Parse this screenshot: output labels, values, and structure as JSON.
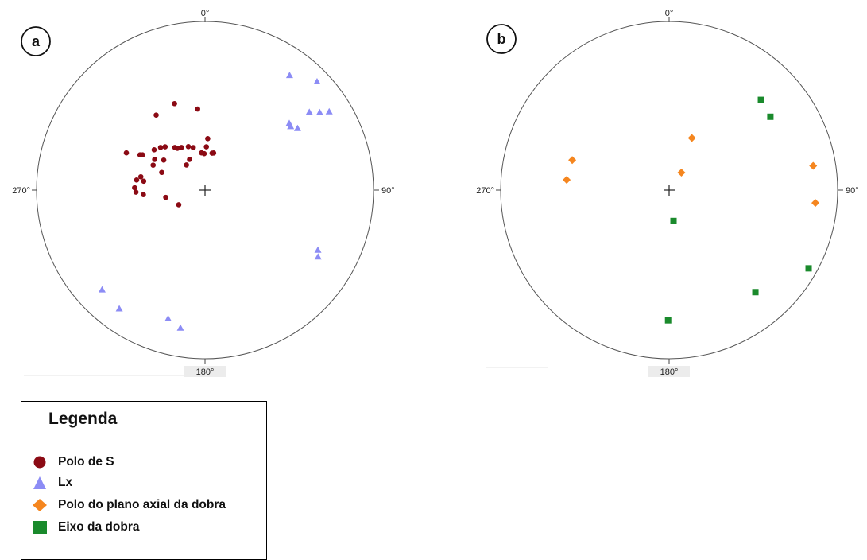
{
  "chart_data": [
    {
      "type": "scatter",
      "panel_label": "a",
      "direction_labels": {
        "north": "0°",
        "east": "90°",
        "south": "180°",
        "west": "270°"
      },
      "series": [
        {
          "name": "Polo de S",
          "marker": "circle",
          "color": "#8b0a14",
          "points": [
            [
              -0.467,
              0.221
            ],
            [
              -0.386,
              0.209
            ],
            [
              -0.371,
              0.209
            ],
            [
              -0.302,
              0.239
            ],
            [
              -0.264,
              0.253
            ],
            [
              -0.237,
              0.257
            ],
            [
              -0.179,
              0.253
            ],
            [
              -0.164,
              0.248
            ],
            [
              -0.14,
              0.253
            ],
            [
              -0.099,
              0.258
            ],
            [
              -0.07,
              0.252
            ],
            [
              -0.021,
              0.221
            ],
            [
              -0.005,
              0.216
            ],
            [
              0.016,
              0.305
            ],
            [
              -0.092,
              0.182
            ],
            [
              -0.11,
              0.149
            ],
            [
              0.008,
              0.257
            ],
            [
              0.042,
              0.219
            ],
            [
              0.051,
              0.22
            ],
            [
              -0.299,
              0.182
            ],
            [
              -0.308,
              0.148
            ],
            [
              -0.257,
              0.105
            ],
            [
              -0.29,
              0.445
            ],
            [
              -0.181,
              0.513
            ],
            [
              -0.044,
              0.481
            ],
            [
              -0.381,
              0.079
            ],
            [
              -0.406,
              0.06
            ],
            [
              -0.364,
              0.053
            ],
            [
              -0.418,
              0.014
            ],
            [
              -0.41,
              -0.012
            ],
            [
              -0.366,
              -0.027
            ],
            [
              -0.233,
              -0.043
            ],
            [
              -0.156,
              -0.087
            ],
            [
              -0.245,
              0.178
            ]
          ]
        },
        {
          "name": "Lx",
          "marker": "triangle",
          "color": "#8c8cf5",
          "points": [
            [
              0.502,
              0.681
            ],
            [
              0.665,
              0.644
            ],
            [
              0.5,
              0.397
            ],
            [
              0.508,
              0.378
            ],
            [
              0.549,
              0.367
            ],
            [
              0.619,
              0.463
            ],
            [
              0.681,
              0.461
            ],
            [
              0.737,
              0.466
            ],
            [
              0.67,
              -0.355
            ],
            [
              0.671,
              -0.395
            ],
            [
              -0.611,
              -0.59
            ],
            [
              -0.509,
              -0.703
            ],
            [
              -0.219,
              -0.762
            ],
            [
              -0.146,
              -0.817
            ]
          ]
        }
      ]
    },
    {
      "type": "scatter",
      "panel_label": "b",
      "direction_labels": {
        "north": "0°",
        "east": "90°",
        "south": "180°",
        "west": "270°"
      },
      "series": [
        {
          "name": "Polo do plano axial da dobra",
          "marker": "diamond",
          "color": "#f5861f",
          "points": [
            [
              -0.575,
              0.178
            ],
            [
              -0.608,
              0.061
            ],
            [
              0.135,
              0.309
            ],
            [
              0.073,
              0.104
            ],
            [
              0.855,
              0.144
            ],
            [
              0.868,
              -0.076
            ]
          ]
        },
        {
          "name": "Eixo da dobra",
          "marker": "square",
          "color": "#1a8a2c",
          "points": [
            [
              0.545,
              0.535
            ],
            [
              0.601,
              0.435
            ],
            [
              0.026,
              -0.183
            ],
            [
              0.828,
              -0.464
            ],
            [
              0.512,
              -0.605
            ],
            [
              -0.006,
              -0.772
            ]
          ]
        }
      ]
    }
  ],
  "legend": {
    "title": "Legenda",
    "items": [
      {
        "label": "Polo de S",
        "marker": "circle",
        "color": "#8b0a14"
      },
      {
        "label": "Lx",
        "marker": "triangle",
        "color": "#8c8cf5"
      },
      {
        "label": "Polo do plano axial da dobra",
        "marker": "diamond",
        "color": "#f5861f"
      },
      {
        "label": "Eixo da dobra",
        "marker": "square",
        "color": "#1a8a2c"
      }
    ]
  }
}
